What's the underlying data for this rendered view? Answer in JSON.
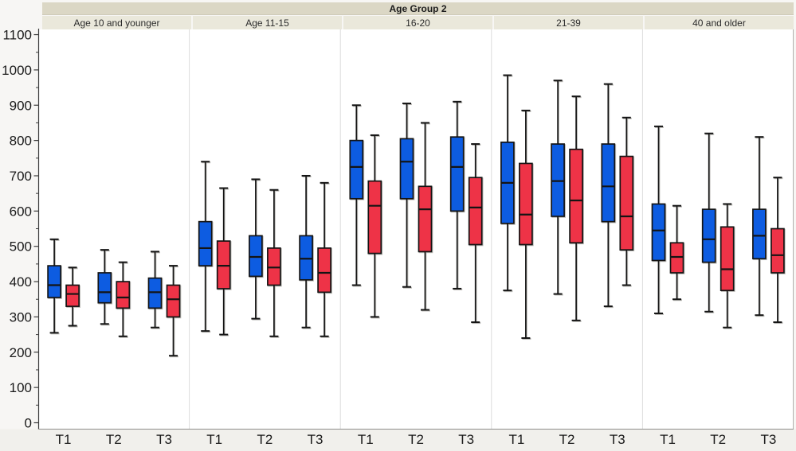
{
  "header": {
    "title": "Age Group 2"
  },
  "chart_data": {
    "type": "box",
    "title": "Age Group 2",
    "xlabel": "",
    "ylabel": "",
    "ylim": [
      0,
      1100
    ],
    "y_major_step": 100,
    "y_minor_step": 50,
    "y_tick_labels": [
      "0",
      "100",
      "200",
      "300",
      "400",
      "500",
      "600",
      "700",
      "800",
      "900",
      "1000",
      "1100"
    ],
    "grid": "off",
    "legend": "none",
    "x_labels": [
      "T1",
      "T2",
      "T3"
    ],
    "series": [
      {
        "name": "blue-box-series",
        "color": "#0d5ce1"
      },
      {
        "name": "red-box-series",
        "color": "#ee3347"
      }
    ],
    "panels": [
      {
        "label": "Age 10 and younger",
        "groups": [
          {
            "boxes": [
              {
                "min": 255,
                "q1": 355,
                "med": 390,
                "q3": 445,
                "max": 520
              },
              {
                "min": 275,
                "q1": 330,
                "med": 365,
                "q3": 390,
                "max": 440
              }
            ]
          },
          {
            "boxes": [
              {
                "min": 280,
                "q1": 340,
                "med": 370,
                "q3": 425,
                "max": 490
              },
              {
                "min": 245,
                "q1": 325,
                "med": 355,
                "q3": 400,
                "max": 455
              }
            ]
          },
          {
            "boxes": [
              {
                "min": 270,
                "q1": 325,
                "med": 370,
                "q3": 410,
                "max": 485
              },
              {
                "min": 190,
                "q1": 300,
                "med": 350,
                "q3": 390,
                "max": 445
              }
            ]
          }
        ]
      },
      {
        "label": "Age 11-15",
        "groups": [
          {
            "boxes": [
              {
                "min": 260,
                "q1": 445,
                "med": 495,
                "q3": 570,
                "max": 740
              },
              {
                "min": 250,
                "q1": 380,
                "med": 445,
                "q3": 515,
                "max": 665
              }
            ]
          },
          {
            "boxes": [
              {
                "min": 295,
                "q1": 415,
                "med": 470,
                "q3": 530,
                "max": 690
              },
              {
                "min": 245,
                "q1": 390,
                "med": 440,
                "q3": 495,
                "max": 660
              }
            ]
          },
          {
            "boxes": [
              {
                "min": 270,
                "q1": 405,
                "med": 465,
                "q3": 530,
                "max": 700
              },
              {
                "min": 245,
                "q1": 370,
                "med": 425,
                "q3": 495,
                "max": 680
              }
            ]
          }
        ]
      },
      {
        "label": "16-20",
        "groups": [
          {
            "boxes": [
              {
                "min": 390,
                "q1": 635,
                "med": 725,
                "q3": 800,
                "max": 900
              },
              {
                "min": 300,
                "q1": 480,
                "med": 615,
                "q3": 685,
                "max": 815
              }
            ]
          },
          {
            "boxes": [
              {
                "min": 385,
                "q1": 635,
                "med": 740,
                "q3": 805,
                "max": 905
              },
              {
                "min": 320,
                "q1": 485,
                "med": 605,
                "q3": 670,
                "max": 850
              }
            ]
          },
          {
            "boxes": [
              {
                "min": 380,
                "q1": 600,
                "med": 725,
                "q3": 810,
                "max": 910
              },
              {
                "min": 285,
                "q1": 505,
                "med": 610,
                "q3": 695,
                "max": 790
              }
            ]
          }
        ]
      },
      {
        "label": "21-39",
        "groups": [
          {
            "boxes": [
              {
                "min": 375,
                "q1": 565,
                "med": 680,
                "q3": 795,
                "max": 985
              },
              {
                "min": 240,
                "q1": 505,
                "med": 590,
                "q3": 735,
                "max": 885
              }
            ]
          },
          {
            "boxes": [
              {
                "min": 365,
                "q1": 585,
                "med": 685,
                "q3": 790,
                "max": 970
              },
              {
                "min": 290,
                "q1": 510,
                "med": 630,
                "q3": 775,
                "max": 925
              }
            ]
          },
          {
            "boxes": [
              {
                "min": 330,
                "q1": 570,
                "med": 670,
                "q3": 790,
                "max": 960
              },
              {
                "min": 390,
                "q1": 490,
                "med": 585,
                "q3": 755,
                "max": 865
              }
            ]
          }
        ]
      },
      {
        "label": "40 and older",
        "groups": [
          {
            "boxes": [
              {
                "min": 310,
                "q1": 460,
                "med": 545,
                "q3": 620,
                "max": 840
              },
              {
                "min": 350,
                "q1": 425,
                "med": 470,
                "q3": 510,
                "max": 615
              }
            ]
          },
          {
            "boxes": [
              {
                "min": 315,
                "q1": 455,
                "med": 520,
                "q3": 605,
                "max": 820
              },
              {
                "min": 270,
                "q1": 375,
                "med": 435,
                "q3": 555,
                "max": 620
              }
            ]
          },
          {
            "boxes": [
              {
                "min": 305,
                "q1": 465,
                "med": 530,
                "q3": 605,
                "max": 810
              },
              {
                "min": 285,
                "q1": 425,
                "med": 475,
                "q3": 550,
                "max": 695
              }
            ]
          }
        ]
      }
    ]
  },
  "colors": {
    "figure_bg": "#f7f6f4",
    "title_bar_bg": "#dbd7c5",
    "panel_label_bg": "#eae8db",
    "plot_bg": "#ffffff",
    "bottom_strip_bg": "#f1f0ec",
    "axis_line": "#3c3c3c",
    "bottom_axis_line": "#8f8e8b",
    "panel_divider": "#dcdcdc",
    "plot_right_border": "#b0afac",
    "box_stroke": "#141414",
    "blue_fill": "#0d5ce1",
    "red_fill": "#ee3347"
  }
}
